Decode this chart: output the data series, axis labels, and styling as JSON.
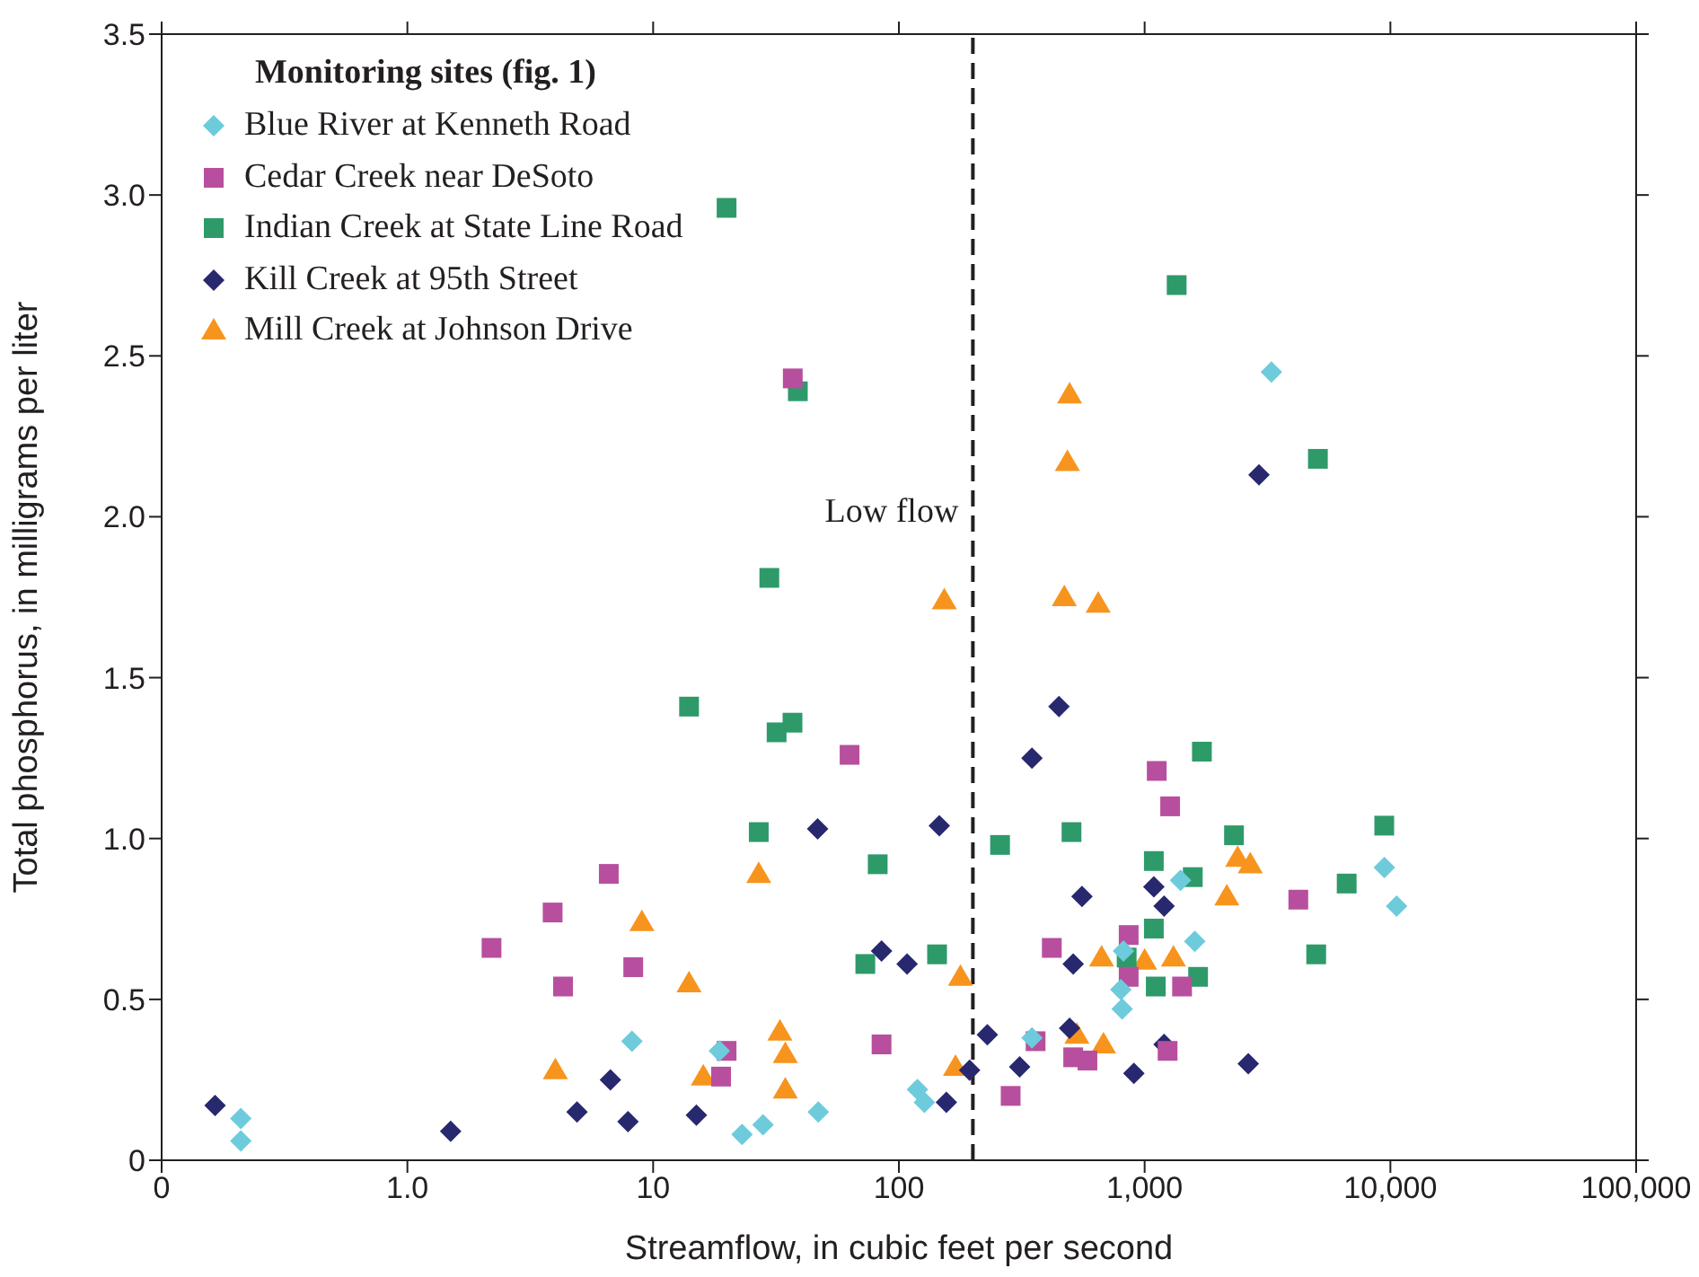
{
  "chart_data": {
    "type": "scatter",
    "xlabel": "Streamflow, in cubic feet per second",
    "ylabel": "Total phosphorus, in milligrams per liter",
    "legend_title": "Monitoring sites (fig. 1)",
    "legend": "top left",
    "log": "x",
    "xlim": [
      0.1,
      100000
    ],
    "xticks": [
      {
        "value": 0.1,
        "label": "0"
      },
      {
        "value": 1,
        "label": "1.0"
      },
      10,
      100,
      {
        "value": 1000,
        "label": "1,000"
      },
      {
        "value": 10000,
        "label": "10,000"
      },
      {
        "value": 100000,
        "label": "100,000"
      }
    ],
    "ylim": [
      0,
      3.5
    ],
    "yticks": [
      0,
      0.5,
      {
        "value": 1,
        "label": "1.0"
      },
      1.5,
      {
        "value": 2,
        "label": "2.0"
      },
      2.5,
      {
        "value": 3,
        "label": "3.0"
      },
      3.5
    ],
    "ref_lines": [
      {
        "axis": "x",
        "value": 200,
        "label": "Low flow",
        "line_style": "dashed",
        "color": "#231f20"
      }
    ],
    "series": [
      {
        "name": "Blue River at Kenneth Road",
        "color": "#6dcbdc",
        "marker": "diamond",
        "x": [
          0.21,
          0.21,
          8.2,
          18.6,
          23,
          28,
          47,
          119,
          127,
          348,
          800,
          810,
          820,
          1400,
          1600,
          3280,
          9450,
          10600
        ],
        "values": [
          0.13,
          0.06,
          0.37,
          0.34,
          0.08,
          0.11,
          0.15,
          0.22,
          0.18,
          0.38,
          0.53,
          0.47,
          0.65,
          0.87,
          0.68,
          2.45,
          0.91,
          0.79
        ]
      },
      {
        "name": "Cedar Creek near DeSoto",
        "color": "#b74f9e",
        "marker": "square",
        "x": [
          6.6,
          3.9,
          2.2,
          4.3,
          8.3,
          19.9,
          18.9,
          63,
          85,
          285,
          360,
          419,
          512,
          585,
          861,
          861,
          1120,
          1270,
          1240,
          1420,
          4220,
          37
        ],
        "values": [
          0.89,
          0.77,
          0.66,
          0.54,
          0.6,
          0.34,
          0.26,
          1.26,
          0.36,
          0.2,
          0.37,
          0.66,
          0.32,
          0.31,
          0.7,
          0.57,
          1.21,
          1.1,
          0.34,
          0.54,
          0.81,
          2.43
        ]
      },
      {
        "name": "Indian Creek at State Line Road",
        "color": "#2e9a6a",
        "marker": "square",
        "x": [
          19.9,
          38.8,
          29.7,
          1350,
          5070,
          14,
          31.8,
          36.9,
          26.9,
          82,
          73,
          143,
          258,
          504,
          1090,
          1090,
          845,
          1110,
          1570,
          1710,
          1650,
          2310,
          6640,
          4990,
          9440
        ],
        "values": [
          2.96,
          2.39,
          1.81,
          2.72,
          2.18,
          1.41,
          1.33,
          1.36,
          1.02,
          0.92,
          0.61,
          0.64,
          0.98,
          1.02,
          0.93,
          0.72,
          0.63,
          0.54,
          0.88,
          1.27,
          0.57,
          1.01,
          0.86,
          0.64,
          1.04
        ]
      },
      {
        "name": "Kill Creek at 95th Street",
        "color": "#27286e",
        "marker": "diamond",
        "x": [
          0.165,
          1.5,
          4.9,
          6.7,
          7.9,
          15,
          46.7,
          146,
          85,
          108,
          156,
          194,
          229,
          310,
          448,
          348,
          556,
          512,
          495,
          904,
          1090,
          1200,
          1200,
          2920,
          2640
        ],
        "values": [
          0.17,
          0.09,
          0.15,
          0.25,
          0.12,
          0.14,
          1.03,
          1.04,
          0.65,
          0.61,
          0.18,
          0.28,
          0.39,
          0.29,
          1.41,
          1.25,
          0.82,
          0.61,
          0.41,
          0.27,
          0.85,
          0.79,
          0.36,
          2.13,
          0.3
        ]
      },
      {
        "name": "Mill Creek at Johnson Drive",
        "color": "#f7941d",
        "marker": "triangle",
        "x": [
          9,
          14,
          4,
          16,
          32.8,
          34.5,
          34.5,
          26.9,
          178,
          170,
          153,
          471,
          647,
          530,
          680,
          668,
          1000,
          1310,
          495,
          485,
          2390,
          2690,
          2160
        ],
        "values": [
          0.74,
          0.55,
          0.28,
          0.26,
          0.4,
          0.33,
          0.22,
          0.89,
          0.57,
          0.29,
          1.74,
          1.75,
          1.73,
          0.39,
          0.36,
          0.63,
          0.62,
          0.63,
          2.38,
          2.17,
          0.94,
          0.92,
          0.82
        ]
      }
    ]
  }
}
